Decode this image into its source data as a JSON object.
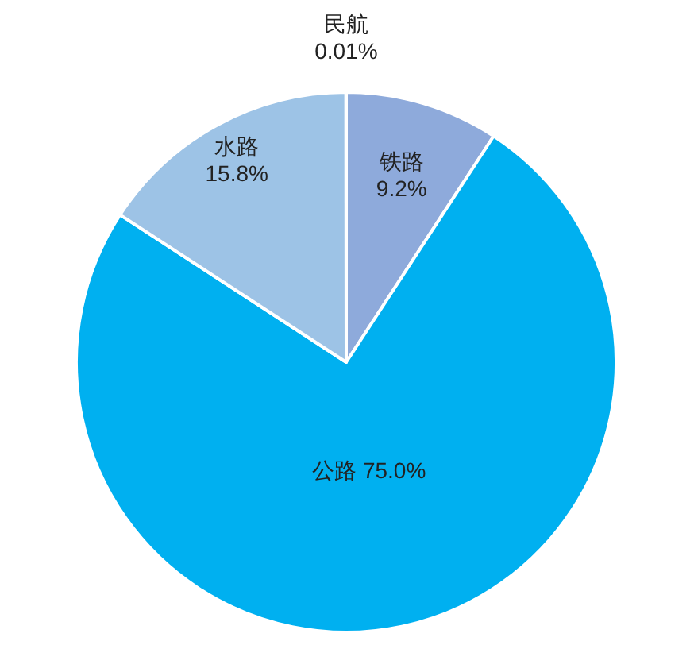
{
  "chart_data": {
    "type": "pie",
    "categories": [
      "铁路",
      "公路",
      "水路",
      "民航"
    ],
    "values": [
      9.2,
      75.0,
      15.8,
      0.01
    ],
    "value_labels": [
      "9.2%",
      "75.0%",
      "15.8%",
      "0.01%"
    ],
    "colors": [
      "#8eaadb",
      "#00b0f0",
      "#9dc3e6",
      "#5b9bd5"
    ],
    "legend": false
  }
}
